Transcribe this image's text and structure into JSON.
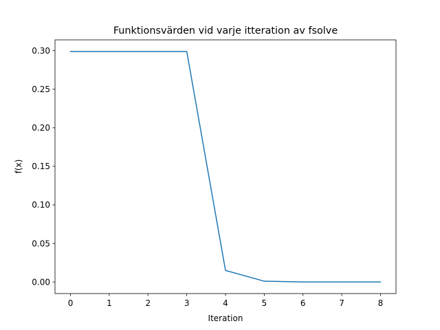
{
  "chart_data": {
    "type": "line",
    "title": "Funktionsvärden vid varje itteration av fsolve",
    "xlabel": "Iteration",
    "ylabel": "f(x)",
    "x": [
      0,
      1,
      2,
      3,
      4,
      5,
      6,
      7,
      8
    ],
    "series": [
      {
        "values": [
          0.299,
          0.299,
          0.299,
          0.299,
          0.015,
          0.001,
          0.0,
          0.0,
          0.0
        ],
        "color": "#1f77b4"
      }
    ],
    "xlim": [
      -0.4,
      8.4
    ],
    "ylim": [
      -0.015,
      0.314
    ],
    "xticks": [
      "0",
      "1",
      "2",
      "3",
      "4",
      "5",
      "6",
      "7",
      "8"
    ],
    "yticks": [
      "0.00",
      "0.05",
      "0.10",
      "0.15",
      "0.20",
      "0.25",
      "0.30"
    ],
    "grid": false,
    "legend": "none"
  }
}
